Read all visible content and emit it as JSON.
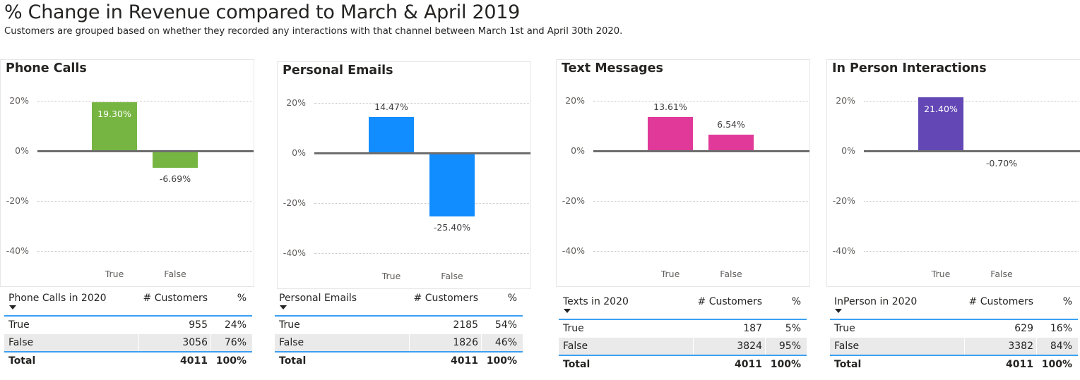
{
  "header": {
    "title": "% Change in Revenue compared to March & April 2019",
    "subtitle": "Customers are grouped based on whether they recorded any interactions with that channel between March 1st and April 30th 2020."
  },
  "chart_data": [
    {
      "type": "bar",
      "title": "Phone Calls",
      "categories": [
        "True",
        "False"
      ],
      "values": [
        19.3,
        -6.69
      ],
      "value_labels": [
        "19.30%",
        "-6.69%"
      ],
      "color": "#77B543",
      "ylim": [
        -45,
        22
      ],
      "yticks": [
        "20%",
        "0%",
        "-20%",
        "-40%"
      ],
      "ytick_values": [
        20,
        0,
        -20,
        -40
      ],
      "grid": true
    },
    {
      "type": "bar",
      "title": "Personal Emails",
      "categories": [
        "True",
        "False"
      ],
      "values": [
        14.47,
        -25.4
      ],
      "value_labels": [
        "14.47%",
        "-25.40%"
      ],
      "color": "#118DFF",
      "ylim": [
        -45,
        22
      ],
      "yticks": [
        "20%",
        "0%",
        "-20%",
        "-40%"
      ],
      "ytick_values": [
        20,
        0,
        -20,
        -40
      ],
      "grid": true
    },
    {
      "type": "bar",
      "title": "Text Messages",
      "categories": [
        "True",
        "False"
      ],
      "values": [
        13.61,
        6.54
      ],
      "value_labels": [
        "13.61%",
        "6.54%"
      ],
      "color": "#E0399A",
      "ylim": [
        -45,
        22
      ],
      "yticks": [
        "20%",
        "0%",
        "-20%",
        "-40%"
      ],
      "ytick_values": [
        20,
        0,
        -20,
        -40
      ],
      "grid": true
    },
    {
      "type": "bar",
      "title": "In Person Interactions",
      "categories": [
        "True",
        "False"
      ],
      "values": [
        21.4,
        -0.7
      ],
      "value_labels": [
        "21.40%",
        "-0.70%"
      ],
      "color": "#6347B5",
      "ylim": [
        -45,
        22
      ],
      "yticks": [
        "20%",
        "0%",
        "-20%",
        "-40%"
      ],
      "ytick_values": [
        20,
        0,
        -20,
        -40
      ],
      "grid": true
    }
  ],
  "tables": [
    {
      "headers": [
        "Phone Calls in 2020",
        "# Customers",
        "%"
      ],
      "rows": [
        [
          "True",
          "955",
          "24%"
        ],
        [
          "False",
          "3056",
          "76%"
        ]
      ],
      "total": [
        "Total",
        "4011",
        "100%"
      ]
    },
    {
      "headers": [
        "Personal Emails",
        "# Customers",
        "%"
      ],
      "rows": [
        [
          "True",
          "2185",
          "54%"
        ],
        [
          "False",
          "1826",
          "46%"
        ]
      ],
      "total": [
        "Total",
        "4011",
        "100%"
      ]
    },
    {
      "headers": [
        "Texts in 2020",
        "# Customers",
        "%"
      ],
      "rows": [
        [
          "True",
          "187",
          "5%"
        ],
        [
          "False",
          "3824",
          "95%"
        ]
      ],
      "total": [
        "Total",
        "4011",
        "100%"
      ]
    },
    {
      "headers": [
        "InPerson in 2020",
        "# Customers",
        "%"
      ],
      "rows": [
        [
          "True",
          "629",
          "16%"
        ],
        [
          "False",
          "3382",
          "84%"
        ]
      ],
      "total": [
        "Total",
        "4011",
        "100%"
      ]
    }
  ]
}
